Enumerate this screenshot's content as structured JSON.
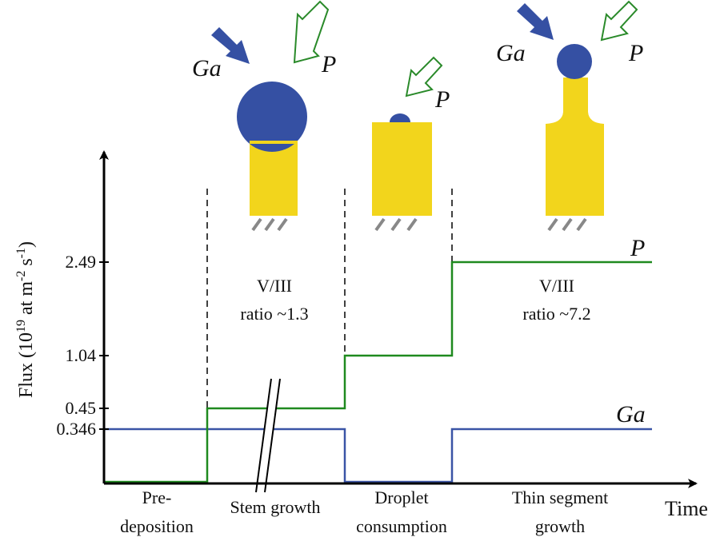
{
  "icons": {
    "stage1": {
      "ga": "Ga",
      "p": "P"
    },
    "stage2": {
      "p": "P"
    },
    "stage3": {
      "ga": "Ga",
      "p": "P"
    }
  },
  "annotations": {
    "stem": [
      "V/III",
      "ratio ~1.3"
    ],
    "thin": [
      "V/III",
      "ratio ~7.2"
    ]
  },
  "curves": {
    "p": "P",
    "ga": "Ga"
  },
  "y_axis": {
    "label": [
      "Flux (10",
      "19",
      " at m",
      "-2",
      " s",
      "-1",
      ")"
    ],
    "ticks": [
      "2.49",
      "1.04",
      "0.45",
      "0.346"
    ]
  },
  "x_axis": {
    "label": "Time"
  },
  "phases": {
    "pre": [
      "Pre-",
      "deposition"
    ],
    "stem": "Stem growth",
    "droplet": [
      "Droplet",
      "consumption"
    ],
    "thin": [
      "Thin segment",
      "growth"
    ]
  }
}
